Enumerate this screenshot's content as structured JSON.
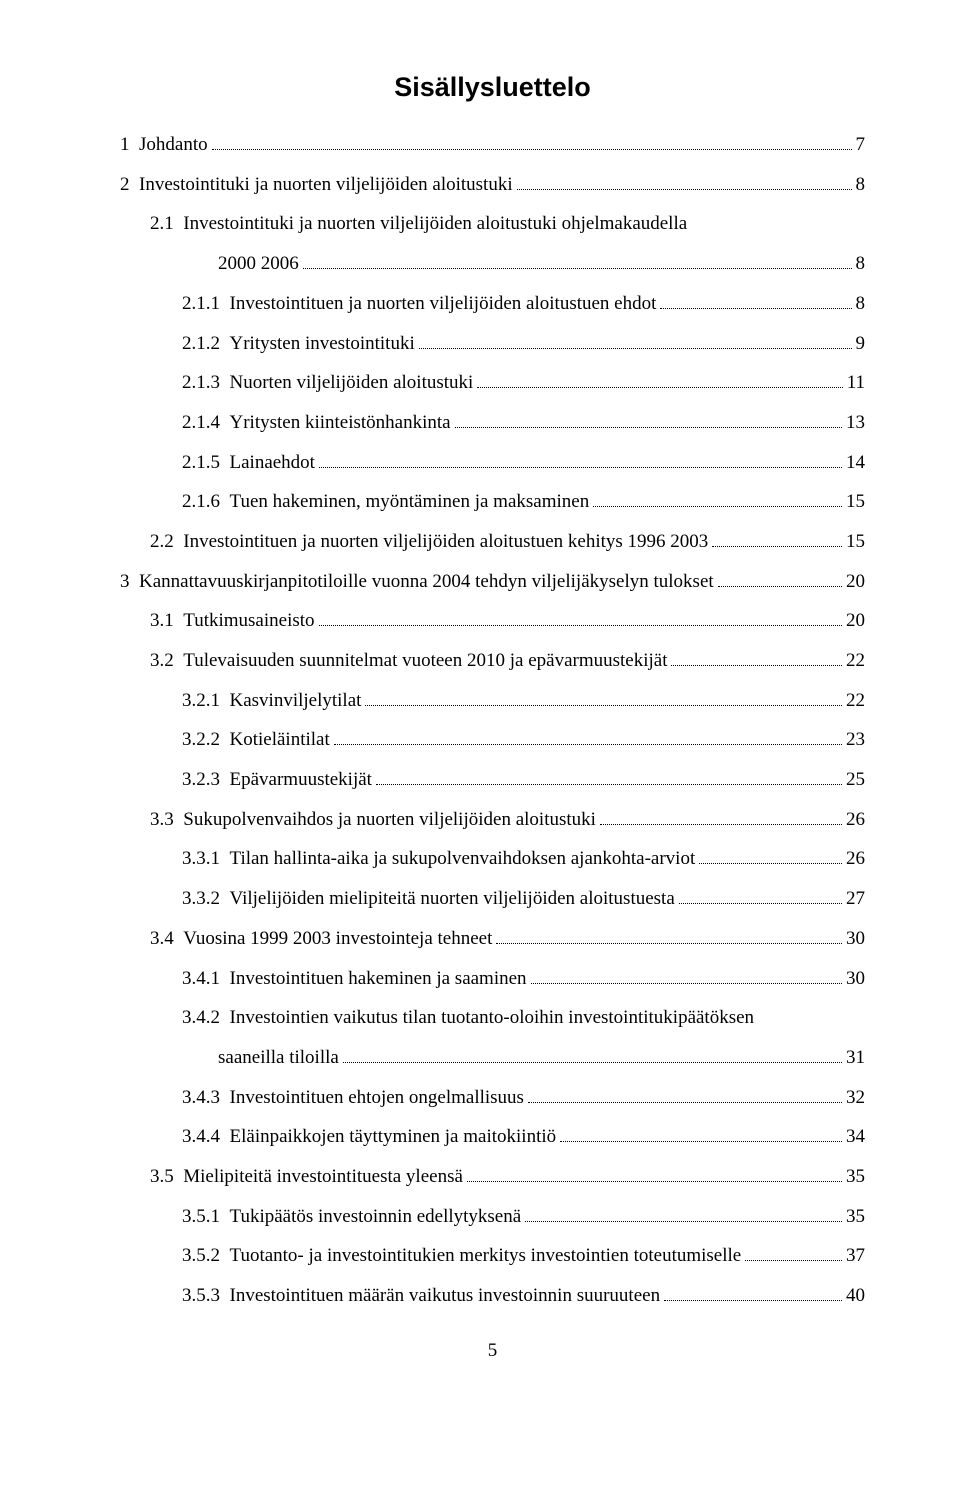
{
  "title": "Sisällysluettelo",
  "page_number": "5",
  "entries": [
    {
      "level": 1,
      "num": "1",
      "label": "Johdanto",
      "page": "7"
    },
    {
      "level": 1,
      "num": "2",
      "label": "Investointituki ja nuorten viljelijöiden aloitustuki",
      "page": "8"
    },
    {
      "level": 2,
      "num": "2.1",
      "label": "Investointituki ja nuorten viljelijöiden aloitustuki ohjelmakaudella",
      "page": null
    },
    {
      "level": "cont",
      "num": "",
      "label": "2000 2006",
      "page": "8"
    },
    {
      "level": 3,
      "num": "2.1.1",
      "label": "Investointituen ja nuorten viljelijöiden aloitustuen ehdot",
      "page": "8"
    },
    {
      "level": 3,
      "num": "2.1.2",
      "label": "Yritysten investointituki",
      "page": "9"
    },
    {
      "level": 3,
      "num": "2.1.3",
      "label": "Nuorten viljelijöiden aloitustuki",
      "page": "11"
    },
    {
      "level": 3,
      "num": "2.1.4",
      "label": "Yritysten kiinteistönhankinta",
      "page": "13"
    },
    {
      "level": 3,
      "num": "2.1.5",
      "label": "Lainaehdot",
      "page": "14"
    },
    {
      "level": 3,
      "num": "2.1.6",
      "label": "Tuen hakeminen, myöntäminen ja maksaminen",
      "page": "15"
    },
    {
      "level": 2,
      "num": "2.2",
      "label": "Investointituen ja nuorten viljelijöiden aloitustuen kehitys 1996 2003",
      "page": "15"
    },
    {
      "level": 1,
      "num": "3",
      "label": "Kannattavuuskirjanpitotiloille vuonna 2004 tehdyn viljelijäkyselyn tulokset",
      "page": "20"
    },
    {
      "level": 2,
      "num": "3.1",
      "label": "Tutkimusaineisto",
      "page": "20"
    },
    {
      "level": 2,
      "num": "3.2",
      "label": "Tulevaisuuden suunnitelmat vuoteen 2010 ja epävarmuustekijät",
      "page": "22"
    },
    {
      "level": 3,
      "num": "3.2.1",
      "label": "Kasvinviljelytilat",
      "page": "22"
    },
    {
      "level": 3,
      "num": "3.2.2",
      "label": "Kotieläintilat",
      "page": "23"
    },
    {
      "level": 3,
      "num": "3.2.3",
      "label": "Epävarmuustekijät",
      "page": "25"
    },
    {
      "level": 2,
      "num": "3.3",
      "label": "Sukupolvenvaihdos ja nuorten viljelijöiden aloitustuki",
      "page": "26"
    },
    {
      "level": 3,
      "num": "3.3.1",
      "label": "Tilan hallinta-aika ja sukupolvenvaihdoksen ajankohta-arviot",
      "page": "26"
    },
    {
      "level": 3,
      "num": "3.3.2",
      "label": "Viljelijöiden mielipiteitä nuorten viljelijöiden aloitustuesta",
      "page": "27"
    },
    {
      "level": 2,
      "num": "3.4",
      "label": "Vuosina 1999 2003 investointeja tehneet",
      "page": "30"
    },
    {
      "level": 3,
      "num": "3.4.1",
      "label": "Investointituen hakeminen ja saaminen",
      "page": "30"
    },
    {
      "level": 3,
      "num": "3.4.2",
      "label": "Investointien vaikutus tilan tuotanto-oloihin investointitukipäätöksen",
      "page": null
    },
    {
      "level": "cont",
      "num": "",
      "label": "saaneilla tiloilla",
      "page": "31"
    },
    {
      "level": 3,
      "num": "3.4.3",
      "label": "Investointituen ehtojen ongelmallisuus",
      "page": "32"
    },
    {
      "level": 3,
      "num": "3.4.4",
      "label": "Eläinpaikkojen täyttyminen ja maitokiintiö",
      "page": "34"
    },
    {
      "level": 2,
      "num": "3.5",
      "label": "Mielipiteitä investointituesta yleensä",
      "page": "35"
    },
    {
      "level": 3,
      "num": "3.5.1",
      "label": "Tukipäätös investoinnin edellytyksenä",
      "page": "35"
    },
    {
      "level": 3,
      "num": "3.5.2",
      "label": "Tuotanto- ja investointitukien merkitys investointien toteutumiselle",
      "page": "37"
    },
    {
      "level": 3,
      "num": "3.5.3",
      "label": "Investointituen määrän vaikutus investoinnin suuruuteen",
      "page": "40"
    }
  ]
}
